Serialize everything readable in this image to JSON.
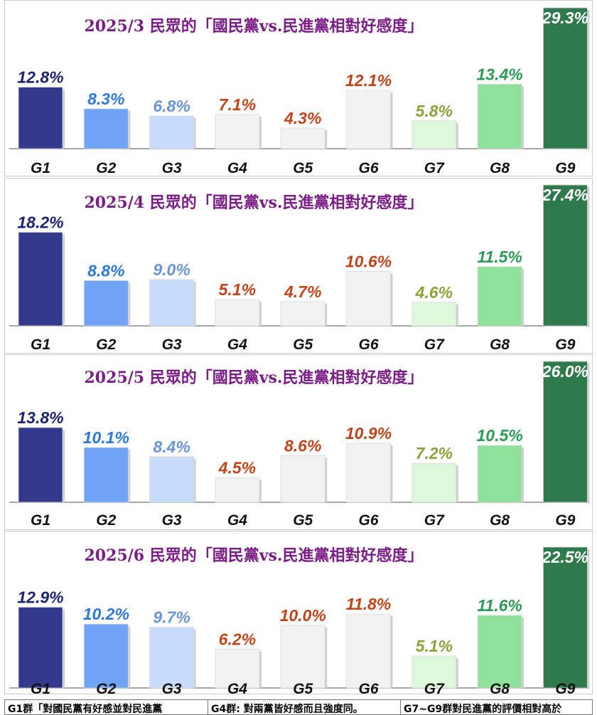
{
  "colors": {
    "title": "#7b1d86",
    "bars": [
      "#333a8c",
      "#6fa3f5",
      "#c7dcfb",
      "#f2f2f2",
      "#f2f2f2",
      "#f2f2f2",
      "#def8dc",
      "#8ee09a",
      "#2e7a4c"
    ],
    "labels": [
      "#1c2470",
      "#2f78d8",
      "#6b95d6",
      "#c0451a",
      "#c0451a",
      "#c0451a",
      "#8ca23b",
      "#2e9a58",
      "#ffffff"
    ]
  },
  "chart_data": [
    {
      "type": "bar",
      "title": "2025/3 民眾的「國民黨vs.民進黨相對好感度」",
      "categories": [
        "G1",
        "G2",
        "G3",
        "G4",
        "G5",
        "G6",
        "G7",
        "G8",
        "G9"
      ],
      "values": [
        12.8,
        8.3,
        6.8,
        7.1,
        4.3,
        12.1,
        5.8,
        13.4,
        29.3
      ],
      "value_labels": [
        "12.8%",
        "8.3%",
        "6.8%",
        "7.1%",
        "4.3%",
        "12.1%",
        "5.8%",
        "13.4%",
        "29.3%"
      ],
      "ylim": [
        0,
        29.3
      ],
      "grid": false
    },
    {
      "type": "bar",
      "title": "2025/4 民眾的「國民黨vs.民進黨相對好感度」",
      "categories": [
        "G1",
        "G2",
        "G3",
        "G4",
        "G5",
        "G6",
        "G7",
        "G8",
        "G9"
      ],
      "values": [
        18.2,
        8.8,
        9.0,
        5.1,
        4.7,
        10.6,
        4.6,
        11.5,
        27.4
      ],
      "value_labels": [
        "18.2%",
        "8.8%",
        "9.0%",
        "5.1%",
        "4.7%",
        "10.6%",
        "4.6%",
        "11.5%",
        "27.4%"
      ],
      "ylim": [
        0,
        27.4
      ],
      "grid": false
    },
    {
      "type": "bar",
      "title": "2025/5 民眾的「國民黨vs.民進黨相對好感度」",
      "categories": [
        "G1",
        "G2",
        "G3",
        "G4",
        "G5",
        "G6",
        "G7",
        "G8",
        "G9"
      ],
      "values": [
        13.8,
        10.1,
        8.4,
        4.5,
        8.6,
        10.9,
        7.2,
        10.5,
        26.0
      ],
      "value_labels": [
        "13.8%",
        "10.1%",
        "8.4%",
        "4.5%",
        "8.6%",
        "10.9%",
        "7.2%",
        "10.5%",
        "26.0%"
      ],
      "ylim": [
        0,
        26.0
      ],
      "grid": false
    },
    {
      "type": "bar",
      "title": "2025/6 民眾的「國民黨vs.民進黨相對好感度」",
      "categories": [
        "G1",
        "G2",
        "G3",
        "G4",
        "G5",
        "G6",
        "G7",
        "G8",
        "G9"
      ],
      "values": [
        12.9,
        10.2,
        9.7,
        6.2,
        10.0,
        11.8,
        5.1,
        11.6,
        22.5
      ],
      "value_labels": [
        "12.9%",
        "10.2%",
        "9.7%",
        "6.2%",
        "10.0%",
        "11.8%",
        "5.1%",
        "11.6%",
        "22.5%"
      ],
      "ylim": [
        0,
        22.5
      ],
      "grid": false
    }
  ],
  "footer": {
    "col1": "G1群「對國民黨有好感並對民進黨",
    "col2": "G4群: 對兩黨皆好感而且強度同。",
    "col3": "G7~G9群對民進黨的評價相對高於"
  }
}
